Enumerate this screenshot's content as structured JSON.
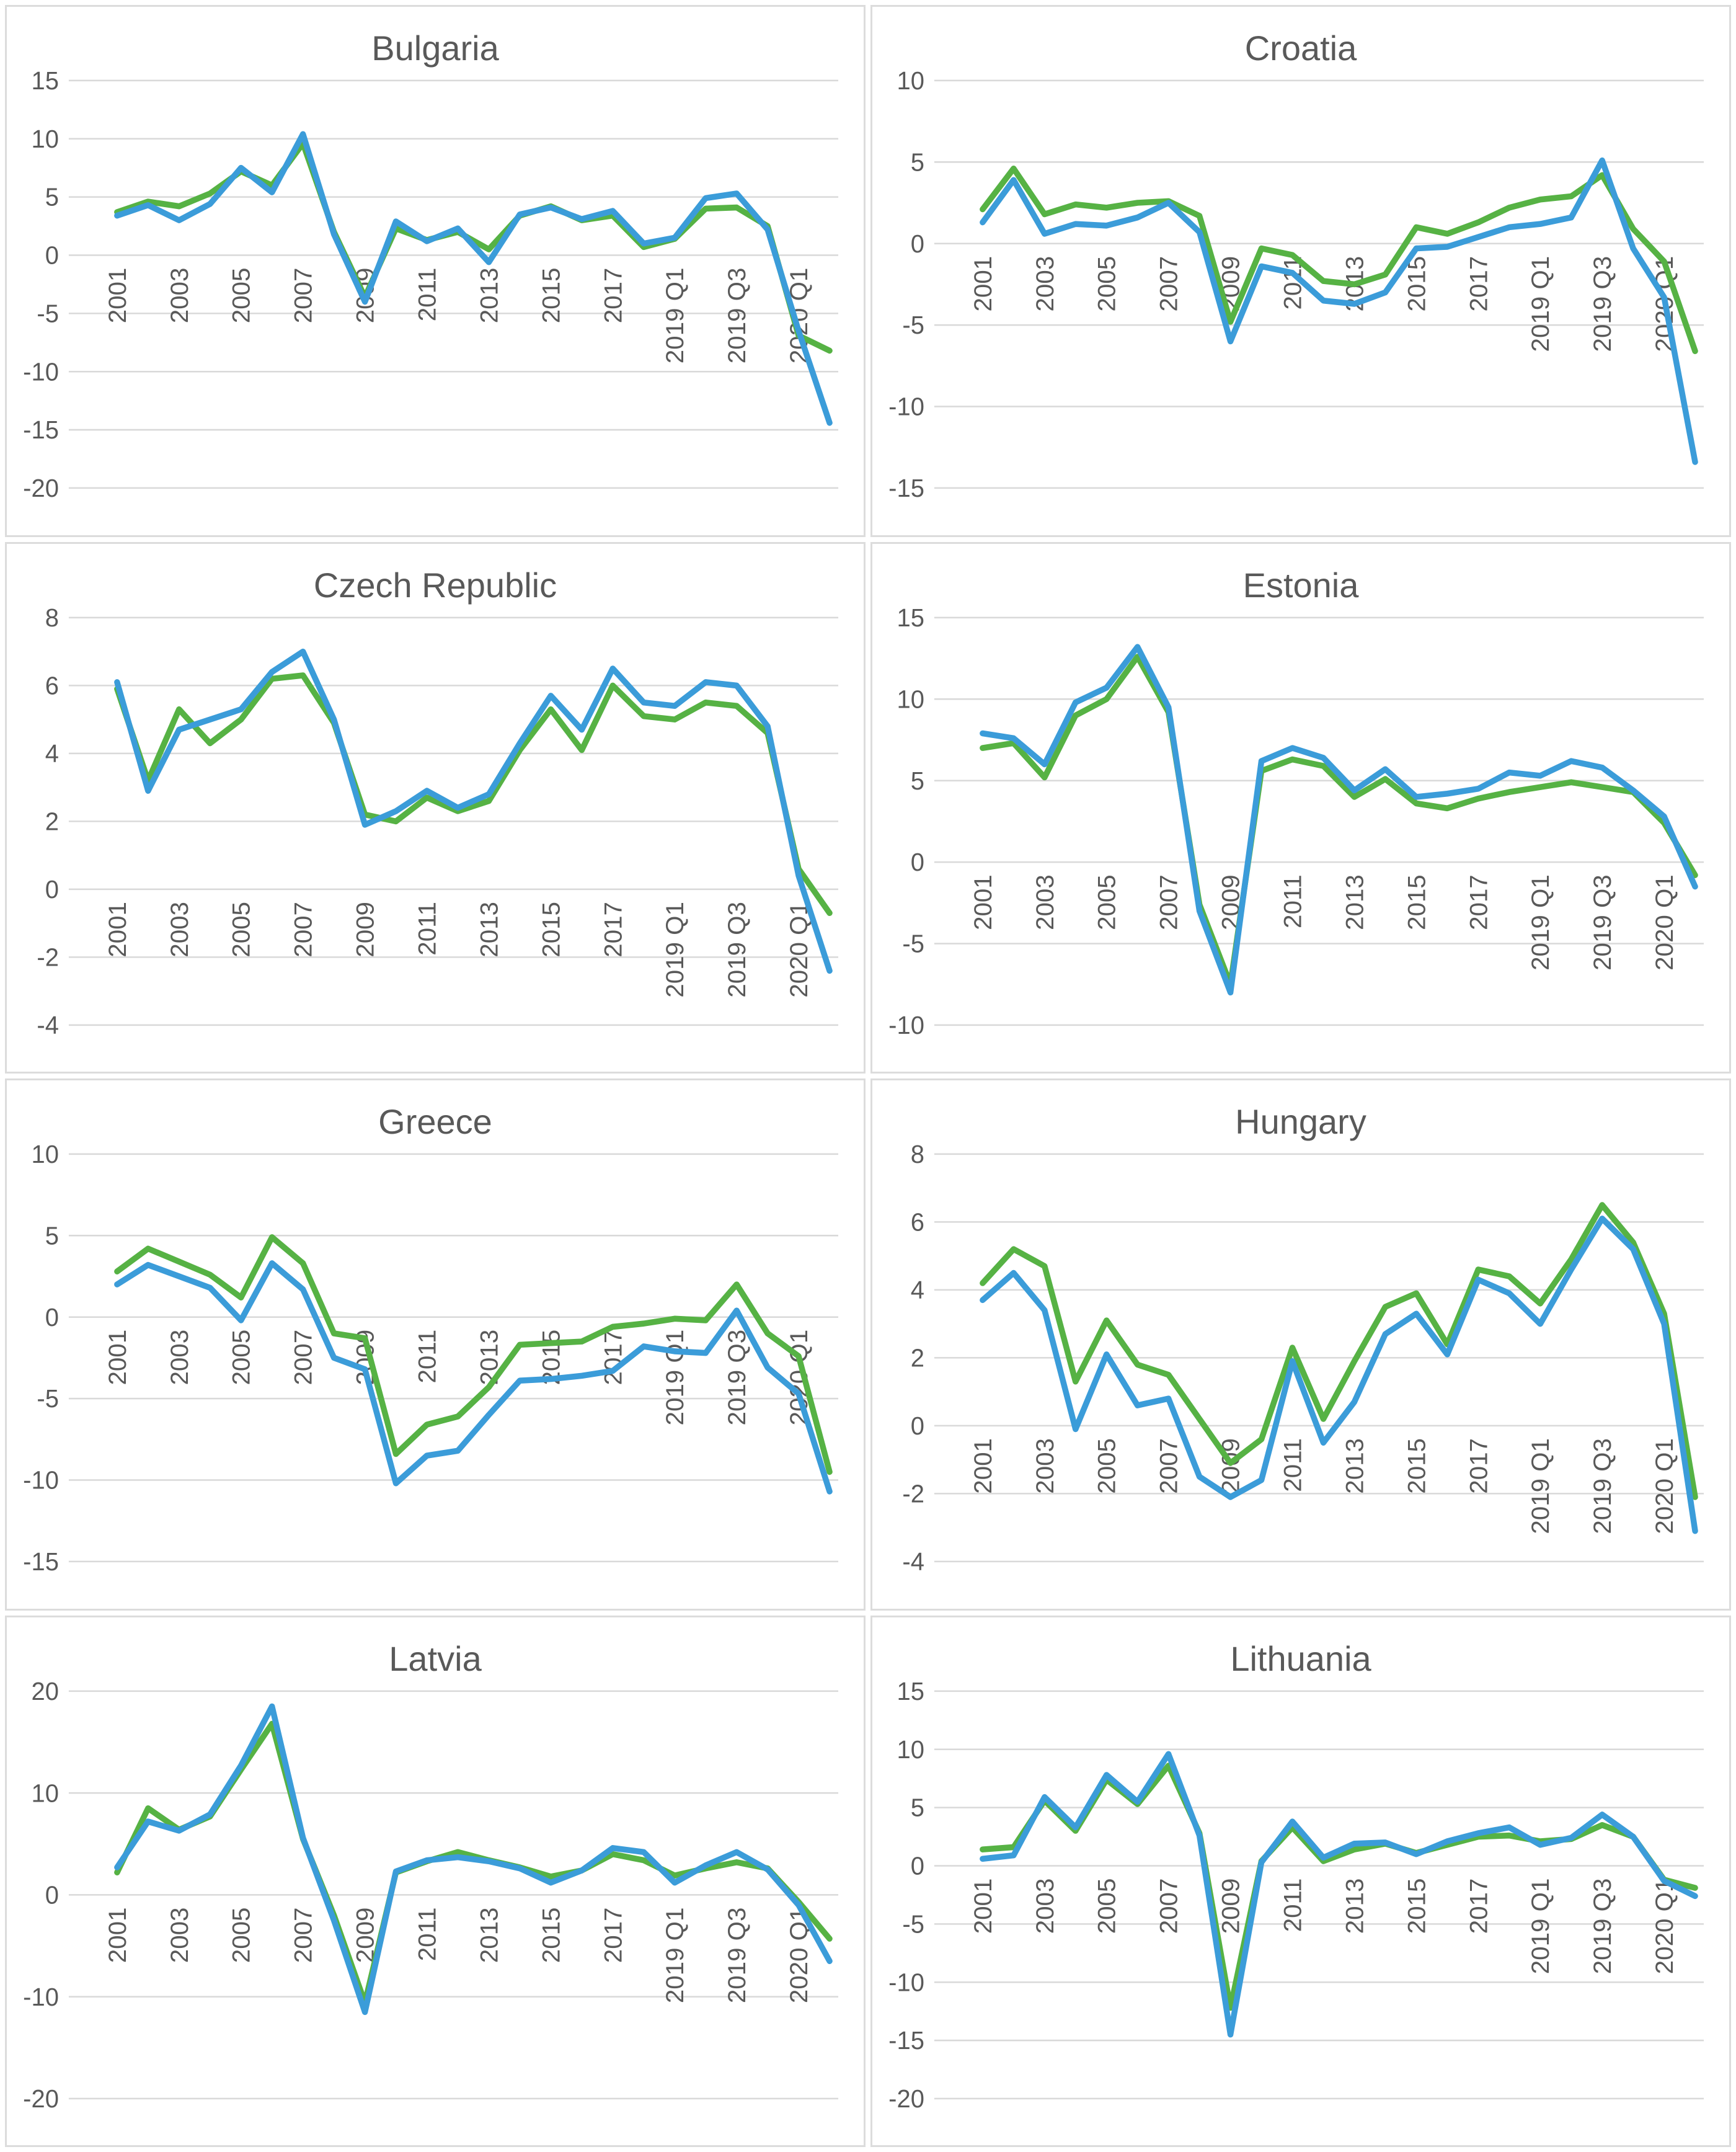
{
  "colors": {
    "series_green": "#56b244",
    "series_blue": "#3b9cd9",
    "gridline": "#d9d9d9",
    "axis_text": "#595959",
    "panel_border": "#dcdcdc",
    "background": "#ffffff"
  },
  "x_axis_labels_shown": [
    "2001",
    "2003",
    "2005",
    "2007",
    "2009",
    "2011",
    "2013",
    "2015",
    "2017",
    "2019 Q1",
    "2019 Q3",
    "2020 Q1"
  ],
  "chart_data": [
    {
      "type": "line",
      "title": "Bulgaria",
      "ylim": [
        -20,
        15
      ],
      "y_ticks": [
        15,
        10,
        5,
        0,
        -5,
        -10,
        -15,
        -20
      ],
      "x": [
        "2001",
        "2002",
        "2003",
        "2004",
        "2005",
        "2006",
        "2007",
        "2008",
        "2009",
        "2010",
        "2011",
        "2012",
        "2013",
        "2014",
        "2015",
        "2016",
        "2017",
        "2018",
        "2019 Q1",
        "2019 Q2",
        "2019 Q3",
        "2019 Q4",
        "2020 Q1",
        "2020 Q2"
      ],
      "x_labels_shown": [
        "2001",
        "2003",
        "2005",
        "2007",
        "2009",
        "2011",
        "2013",
        "2015",
        "2017",
        "2019 Q1",
        "2019 Q3",
        "2020 Q1"
      ],
      "grid": "horizontal",
      "legend": "none",
      "series": [
        {
          "name": "green",
          "values": [
            3.7,
            4.6,
            4.2,
            5.3,
            7.2,
            6.0,
            9.6,
            2.0,
            -3.6,
            2.3,
            1.3,
            2.0,
            0.5,
            3.4,
            4.2,
            3.0,
            3.4,
            0.7,
            1.4,
            4.0,
            4.1,
            2.5,
            -6.9,
            -8.2
          ]
        },
        {
          "name": "blue",
          "values": [
            3.4,
            4.3,
            3.0,
            4.4,
            7.5,
            5.4,
            10.4,
            1.8,
            -4.0,
            2.9,
            1.2,
            2.3,
            -0.6,
            3.5,
            4.1,
            3.1,
            3.8,
            1.0,
            1.5,
            4.9,
            5.3,
            2.2,
            -6.5,
            -14.4
          ]
        }
      ]
    },
    {
      "type": "line",
      "title": "Croatia",
      "ylim": [
        -15,
        10
      ],
      "y_ticks": [
        10,
        5,
        0,
        -5,
        -10,
        -15
      ],
      "x": [
        "2001",
        "2002",
        "2003",
        "2004",
        "2005",
        "2006",
        "2007",
        "2008",
        "2009",
        "2010",
        "2011",
        "2012",
        "2013",
        "2014",
        "2015",
        "2016",
        "2017",
        "2018",
        "2019 Q1",
        "2019 Q2",
        "2019 Q3",
        "2019 Q4",
        "2020 Q1",
        "2020 Q2"
      ],
      "x_labels_shown": [
        "2001",
        "2003",
        "2005",
        "2007",
        "2009",
        "2011",
        "2013",
        "2015",
        "2017",
        "2019 Q1",
        "2019 Q3",
        "2020 Q1"
      ],
      "grid": "horizontal",
      "legend": "none",
      "series": [
        {
          "name": "green",
          "values": [
            2.1,
            4.6,
            1.8,
            2.4,
            2.2,
            2.5,
            2.6,
            1.7,
            -4.8,
            -0.3,
            -0.7,
            -2.3,
            -2.5,
            -1.9,
            1.0,
            0.6,
            1.3,
            2.2,
            2.7,
            2.9,
            4.2,
            0.9,
            -1.1,
            -6.6
          ]
        },
        {
          "name": "blue",
          "values": [
            1.3,
            3.9,
            0.6,
            1.2,
            1.1,
            1.6,
            2.5,
            0.7,
            -6.0,
            -1.4,
            -1.8,
            -3.5,
            -3.7,
            -3.0,
            -0.3,
            -0.2,
            0.4,
            1.0,
            1.2,
            1.6,
            5.1,
            -0.3,
            -3.3,
            -13.4
          ]
        }
      ]
    },
    {
      "type": "line",
      "title": "Czech Republic",
      "ylim": [
        -4,
        8
      ],
      "y_ticks": [
        8,
        6,
        4,
        2,
        0,
        -2,
        -4
      ],
      "x": [
        "2001",
        "2002",
        "2003",
        "2004",
        "2005",
        "2006",
        "2007",
        "2008",
        "2009",
        "2010",
        "2011",
        "2012",
        "2013",
        "2014",
        "2015",
        "2016",
        "2017",
        "2018",
        "2019 Q1",
        "2019 Q2",
        "2019 Q3",
        "2019 Q4",
        "2020 Q1",
        "2020 Q2"
      ],
      "x_labels_shown": [
        "2001",
        "2003",
        "2005",
        "2007",
        "2009",
        "2011",
        "2013",
        "2015",
        "2017",
        "2019 Q1",
        "2019 Q3",
        "2020 Q1"
      ],
      "grid": "horizontal",
      "legend": "none",
      "series": [
        {
          "name": "green",
          "values": [
            5.9,
            3.2,
            5.3,
            4.3,
            5.0,
            6.2,
            6.3,
            4.9,
            2.2,
            2.0,
            2.7,
            2.3,
            2.6,
            4.1,
            5.3,
            4.1,
            6.0,
            5.1,
            5.0,
            5.5,
            5.4,
            4.6,
            0.6,
            -0.7
          ]
        },
        {
          "name": "blue",
          "values": [
            6.1,
            2.9,
            4.7,
            5.0,
            5.3,
            6.4,
            7.0,
            5.0,
            1.9,
            2.3,
            2.9,
            2.4,
            2.8,
            4.3,
            5.7,
            4.7,
            6.5,
            5.5,
            5.4,
            6.1,
            6.0,
            4.8,
            0.4,
            -2.4
          ]
        }
      ]
    },
    {
      "type": "line",
      "title": "Estonia",
      "ylim": [
        -10,
        15
      ],
      "y_ticks": [
        15,
        10,
        5,
        0,
        -5,
        -10
      ],
      "x": [
        "2001",
        "2002",
        "2003",
        "2004",
        "2005",
        "2006",
        "2007",
        "2008",
        "2009",
        "2010",
        "2011",
        "2012",
        "2013",
        "2014",
        "2015",
        "2016",
        "2017",
        "2018",
        "2019 Q1",
        "2019 Q2",
        "2019 Q3",
        "2019 Q4",
        "2020 Q1",
        "2020 Q2"
      ],
      "x_labels_shown": [
        "2001",
        "2003",
        "2005",
        "2007",
        "2009",
        "2011",
        "2013",
        "2015",
        "2017",
        "2019 Q1",
        "2019 Q3",
        "2020 Q1"
      ],
      "grid": "horizontal",
      "legend": "none",
      "series": [
        {
          "name": "green",
          "values": [
            7.0,
            7.3,
            5.2,
            9.0,
            10.0,
            12.6,
            9.2,
            -2.6,
            -7.5,
            5.6,
            6.3,
            5.9,
            4.0,
            5.1,
            3.6,
            3.3,
            3.9,
            4.3,
            4.6,
            4.9,
            4.6,
            4.3,
            2.4,
            -0.8
          ]
        },
        {
          "name": "blue",
          "values": [
            7.9,
            7.6,
            6.0,
            9.8,
            10.7,
            13.2,
            9.5,
            -3.0,
            -8.0,
            6.2,
            7.0,
            6.4,
            4.4,
            5.7,
            4.0,
            4.2,
            4.5,
            5.5,
            5.3,
            6.2,
            5.8,
            4.4,
            2.8,
            -1.5
          ]
        }
      ]
    },
    {
      "type": "line",
      "title": "Greece",
      "ylim": [
        -15,
        10
      ],
      "y_ticks": [
        10,
        5,
        0,
        -5,
        -10,
        -15
      ],
      "x": [
        "2001",
        "2002",
        "2003",
        "2004",
        "2005",
        "2006",
        "2007",
        "2008",
        "2009",
        "2010",
        "2011",
        "2012",
        "2013",
        "2014",
        "2015",
        "2016",
        "2017",
        "2018",
        "2019 Q1",
        "2019 Q2",
        "2019 Q3",
        "2019 Q4",
        "2020 Q1",
        "2020 Q2"
      ],
      "x_labels_shown": [
        "2001",
        "2003",
        "2005",
        "2007",
        "2009",
        "2011",
        "2013",
        "2015",
        "2017",
        "2019 Q1",
        "2019 Q3",
        "2020 Q1"
      ],
      "grid": "horizontal",
      "legend": "none",
      "series": [
        {
          "name": "green",
          "values": [
            2.8,
            4.2,
            3.4,
            2.6,
            1.2,
            4.9,
            3.3,
            -1.0,
            -1.3,
            -8.4,
            -6.6,
            -6.1,
            -4.3,
            -1.7,
            -1.6,
            -1.5,
            -0.6,
            -0.4,
            -0.1,
            -0.2,
            2.0,
            -1.0,
            -2.4,
            -9.5
          ]
        },
        {
          "name": "blue",
          "values": [
            2.0,
            3.2,
            2.5,
            1.8,
            -0.2,
            3.3,
            1.7,
            -2.5,
            -3.2,
            -10.2,
            -8.5,
            -8.2,
            -6.0,
            -3.9,
            -3.8,
            -3.6,
            -3.3,
            -1.8,
            -2.1,
            -2.2,
            0.4,
            -3.1,
            -4.7,
            -10.7
          ]
        }
      ]
    },
    {
      "type": "line",
      "title": "Hungary",
      "ylim": [
        -4,
        8
      ],
      "y_ticks": [
        8,
        6,
        4,
        2,
        0,
        -2,
        -4
      ],
      "x": [
        "2001",
        "2002",
        "2003",
        "2004",
        "2005",
        "2006",
        "2007",
        "2008",
        "2009",
        "2010",
        "2011",
        "2012",
        "2013",
        "2014",
        "2015",
        "2016",
        "2017",
        "2018",
        "2019 Q1",
        "2019 Q2",
        "2019 Q3",
        "2019 Q4",
        "2020 Q1",
        "2020 Q2"
      ],
      "x_labels_shown": [
        "2001",
        "2003",
        "2005",
        "2007",
        "2009",
        "2011",
        "2013",
        "2015",
        "2017",
        "2019 Q1",
        "2019 Q3",
        "2020 Q1"
      ],
      "grid": "horizontal",
      "legend": "none",
      "series": [
        {
          "name": "green",
          "values": [
            4.2,
            5.2,
            4.7,
            1.3,
            3.1,
            1.8,
            1.5,
            0.2,
            -1.1,
            -0.4,
            2.3,
            0.2,
            1.9,
            3.5,
            3.9,
            2.4,
            4.6,
            4.4,
            3.6,
            4.9,
            6.5,
            5.4,
            3.3,
            -2.1
          ]
        },
        {
          "name": "blue",
          "values": [
            3.7,
            4.5,
            3.4,
            -0.1,
            2.1,
            0.6,
            0.8,
            -1.5,
            -2.1,
            -1.6,
            1.9,
            -0.5,
            0.7,
            2.7,
            3.3,
            2.1,
            4.3,
            3.9,
            3.0,
            4.6,
            6.1,
            5.2,
            3.0,
            -3.1
          ]
        }
      ]
    },
    {
      "type": "line",
      "title": "Latvia",
      "ylim": [
        -20,
        20
      ],
      "y_ticks": [
        20,
        10,
        0,
        -10,
        -20
      ],
      "x": [
        "2001",
        "2002",
        "2003",
        "2004",
        "2005",
        "2006",
        "2007",
        "2008",
        "2009",
        "2010",
        "2011",
        "2012",
        "2013",
        "2014",
        "2015",
        "2016",
        "2017",
        "2018",
        "2019 Q1",
        "2019 Q2",
        "2019 Q3",
        "2019 Q4",
        "2020 Q1",
        "2020 Q2"
      ],
      "x_labels_shown": [
        "2001",
        "2003",
        "2005",
        "2007",
        "2009",
        "2011",
        "2013",
        "2015",
        "2017",
        "2019 Q1",
        "2019 Q3",
        "2020 Q1"
      ],
      "grid": "horizontal",
      "legend": "none",
      "series": [
        {
          "name": "green",
          "values": [
            2.2,
            8.5,
            6.4,
            7.7,
            12.3,
            16.8,
            5.5,
            -2.0,
            -10.6,
            2.2,
            3.3,
            4.2,
            3.4,
            2.7,
            1.8,
            2.4,
            4.0,
            3.4,
            1.9,
            2.6,
            3.2,
            2.6,
            -0.7,
            -4.3
          ]
        },
        {
          "name": "blue",
          "values": [
            2.7,
            7.2,
            6.3,
            7.9,
            12.7,
            18.5,
            5.6,
            -2.5,
            -11.5,
            2.3,
            3.4,
            3.7,
            3.3,
            2.6,
            1.2,
            2.4,
            4.6,
            4.2,
            1.2,
            2.9,
            4.2,
            2.5,
            -1.0,
            -6.5
          ]
        }
      ]
    },
    {
      "type": "line",
      "title": "Lithuania",
      "ylim": [
        -20,
        15
      ],
      "y_ticks": [
        15,
        10,
        5,
        0,
        -5,
        -10,
        -15,
        -20
      ],
      "x": [
        "2001",
        "2002",
        "2003",
        "2004",
        "2005",
        "2006",
        "2007",
        "2008",
        "2009",
        "2010",
        "2011",
        "2012",
        "2013",
        "2014",
        "2015",
        "2016",
        "2017",
        "2018",
        "2019 Q1",
        "2019 Q2",
        "2019 Q3",
        "2019 Q4",
        "2020 Q1",
        "2020 Q2"
      ],
      "x_labels_shown": [
        "2001",
        "2003",
        "2005",
        "2007",
        "2009",
        "2011",
        "2013",
        "2015",
        "2017",
        "2019 Q1",
        "2019 Q3",
        "2020 Q1"
      ],
      "grid": "horizontal",
      "legend": "none",
      "series": [
        {
          "name": "green",
          "values": [
            1.4,
            1.6,
            5.6,
            3.0,
            7.4,
            5.3,
            8.6,
            2.8,
            -12.2,
            0.4,
            3.3,
            0.4,
            1.4,
            1.9,
            1.1,
            1.8,
            2.5,
            2.6,
            2.1,
            2.3,
            3.5,
            2.5,
            -1.2,
            -1.9
          ]
        },
        {
          "name": "blue",
          "values": [
            0.6,
            0.9,
            5.9,
            3.3,
            7.8,
            5.5,
            9.6,
            2.6,
            -14.5,
            0.3,
            3.8,
            0.7,
            1.9,
            2.0,
            1.0,
            2.1,
            2.8,
            3.3,
            1.8,
            2.4,
            4.4,
            2.5,
            -1.3,
            -2.6
          ]
        }
      ]
    }
  ]
}
